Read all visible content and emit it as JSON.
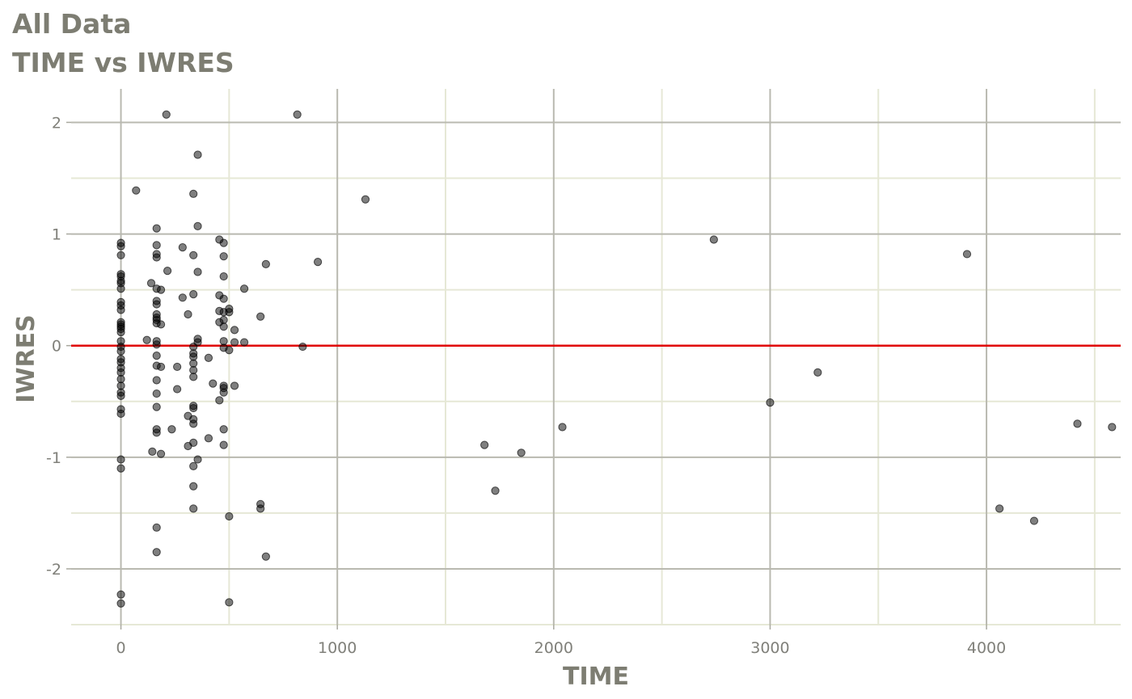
{
  "chart_data": {
    "type": "scatter",
    "title": "All Data",
    "subtitle": "TIME vs IWRES",
    "xlabel": "TIME",
    "ylabel": "IWRES",
    "xlim": [
      -230,
      4620
    ],
    "ylim": [
      -2.5,
      2.3
    ],
    "xticks": [
      0,
      1000,
      2000,
      3000,
      4000
    ],
    "yticks": [
      -2,
      -1,
      0,
      1,
      2
    ],
    "xtick_labels": [
      "0",
      "1000",
      "2000",
      "3000",
      "4000"
    ],
    "ytick_labels": [
      "-2",
      "-1",
      "0",
      "1",
      "2"
    ],
    "grid": true,
    "reference_line": {
      "y": 0,
      "color": "#e00000"
    },
    "point_color": "#000000",
    "points": [
      [
        0,
        0.92
      ],
      [
        0,
        0.89
      ],
      [
        0,
        0.81
      ],
      [
        0,
        0.64
      ],
      [
        0,
        0.62
      ],
      [
        0,
        0.58
      ],
      [
        0,
        0.56
      ],
      [
        0,
        0.51
      ],
      [
        0,
        0.39
      ],
      [
        0,
        0.36
      ],
      [
        0,
        0.32
      ],
      [
        0,
        0.21
      ],
      [
        0,
        0.19
      ],
      [
        0,
        0.17
      ],
      [
        0,
        0.15
      ],
      [
        0,
        0.12
      ],
      [
        0,
        0.04
      ],
      [
        0,
        -0.01
      ],
      [
        0,
        -0.05
      ],
      [
        0,
        -0.12
      ],
      [
        0,
        -0.15
      ],
      [
        0,
        -0.2
      ],
      [
        0,
        -0.24
      ],
      [
        0,
        -0.3
      ],
      [
        0,
        -0.36
      ],
      [
        0,
        -0.42
      ],
      [
        0,
        -0.45
      ],
      [
        0,
        -0.57
      ],
      [
        0,
        -0.61
      ],
      [
        0,
        -1.02
      ],
      [
        0,
        -1.1
      ],
      [
        0,
        -2.23
      ],
      [
        0,
        -2.31
      ],
      [
        70,
        1.39
      ],
      [
        120,
        0.05
      ],
      [
        140,
        0.56
      ],
      [
        145,
        -0.95
      ],
      [
        165,
        1.05
      ],
      [
        165,
        0.9
      ],
      [
        165,
        0.82
      ],
      [
        165,
        0.79
      ],
      [
        165,
        0.51
      ],
      [
        165,
        0.4
      ],
      [
        165,
        0.37
      ],
      [
        165,
        0.28
      ],
      [
        165,
        0.25
      ],
      [
        165,
        0.23
      ],
      [
        165,
        0.2
      ],
      [
        165,
        0.04
      ],
      [
        165,
        0.01
      ],
      [
        165,
        -0.09
      ],
      [
        165,
        -0.18
      ],
      [
        165,
        -0.31
      ],
      [
        165,
        -0.43
      ],
      [
        165,
        -0.55
      ],
      [
        165,
        -0.75
      ],
      [
        165,
        -0.78
      ],
      [
        165,
        -1.63
      ],
      [
        165,
        -1.85
      ],
      [
        185,
        0.5
      ],
      [
        185,
        0.19
      ],
      [
        185,
        -0.19
      ],
      [
        185,
        -0.97
      ],
      [
        210,
        2.07
      ],
      [
        215,
        0.67
      ],
      [
        235,
        -0.75
      ],
      [
        260,
        -0.19
      ],
      [
        260,
        -0.39
      ],
      [
        285,
        0.88
      ],
      [
        285,
        0.43
      ],
      [
        310,
        0.28
      ],
      [
        310,
        -0.63
      ],
      [
        310,
        -0.9
      ],
      [
        335,
        1.36
      ],
      [
        335,
        0.81
      ],
      [
        335,
        0.46
      ],
      [
        335,
        -0.01
      ],
      [
        335,
        -0.07
      ],
      [
        335,
        -0.1
      ],
      [
        335,
        -0.16
      ],
      [
        335,
        -0.22
      ],
      [
        335,
        -0.28
      ],
      [
        335,
        -0.54
      ],
      [
        335,
        -0.56
      ],
      [
        335,
        -0.66
      ],
      [
        335,
        -0.7
      ],
      [
        335,
        -0.87
      ],
      [
        335,
        -1.08
      ],
      [
        335,
        -1.26
      ],
      [
        335,
        -1.46
      ],
      [
        355,
        1.71
      ],
      [
        355,
        1.07
      ],
      [
        355,
        0.66
      ],
      [
        355,
        0.06
      ],
      [
        355,
        0.03
      ],
      [
        355,
        -1.02
      ],
      [
        405,
        -0.11
      ],
      [
        405,
        -0.83
      ],
      [
        425,
        -0.34
      ],
      [
        455,
        0.95
      ],
      [
        455,
        0.45
      ],
      [
        455,
        0.31
      ],
      [
        455,
        0.21
      ],
      [
        455,
        -0.49
      ],
      [
        475,
        0.92
      ],
      [
        475,
        0.8
      ],
      [
        475,
        0.62
      ],
      [
        475,
        0.42
      ],
      [
        475,
        0.3
      ],
      [
        475,
        0.23
      ],
      [
        475,
        0.17
      ],
      [
        475,
        0.04
      ],
      [
        475,
        -0.02
      ],
      [
        475,
        -0.36
      ],
      [
        475,
        -0.38
      ],
      [
        475,
        -0.42
      ],
      [
        475,
        -0.75
      ],
      [
        475,
        -0.89
      ],
      [
        500,
        0.33
      ],
      [
        500,
        0.3
      ],
      [
        500,
        -0.04
      ],
      [
        500,
        -1.53
      ],
      [
        500,
        -2.3
      ],
      [
        525,
        0.14
      ],
      [
        525,
        0.03
      ],
      [
        525,
        -0.36
      ],
      [
        570,
        0.51
      ],
      [
        570,
        0.03
      ],
      [
        645,
        0.26
      ],
      [
        645,
        -1.42
      ],
      [
        645,
        -1.46
      ],
      [
        670,
        0.73
      ],
      [
        670,
        -1.89
      ],
      [
        815,
        2.07
      ],
      [
        840,
        -0.01
      ],
      [
        910,
        0.75
      ],
      [
        1130,
        1.31
      ],
      [
        1680,
        -0.89
      ],
      [
        1730,
        -1.3
      ],
      [
        1850,
        -0.96
      ],
      [
        2040,
        -0.73
      ],
      [
        2740,
        0.95
      ],
      [
        3000,
        -0.51
      ],
      [
        3220,
        -0.24
      ],
      [
        3910,
        0.82
      ],
      [
        4060,
        -1.46
      ],
      [
        4220,
        -1.57
      ],
      [
        4420,
        -0.7
      ],
      [
        4580,
        -0.73
      ]
    ]
  }
}
